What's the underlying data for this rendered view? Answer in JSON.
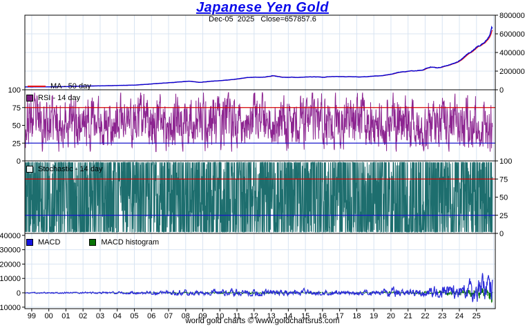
{
  "header": {
    "title": "Japanese Yen Gold",
    "subtitle": "Dec-05  2025   Close=657857.6"
  },
  "footer": {
    "credit": "world gold charts © www.goldchartsrus.com"
  },
  "legends": {
    "ma": "MA - 50 day",
    "rsi": "RSI - 14 day",
    "stoch": "Stochastic - 14 day",
    "macd": "MACD",
    "macd_hist": "MACD histogram"
  },
  "colors": {
    "title": "#0b0bea",
    "price": "#0202d6",
    "ma": "#e81414",
    "rsi": "#8c2490",
    "stochastic": "#1d6e6e",
    "macd": "#2a2ad8",
    "macd_histogram": "#077307",
    "ref_high": "#d40000",
    "ref_low": "#1515cc",
    "grid": "#d8e4f2",
    "label_red": "#dd0000",
    "label_blue": "#1d1dd8"
  },
  "chart_data": {
    "type": "line",
    "title": "Japanese Yen Gold",
    "subtitle_date": "Dec-05 2025",
    "last_close": 657857.6,
    "x_axis": {
      "range": [
        1998.6,
        2026.1
      ],
      "years": [
        1999,
        2000,
        2001,
        2002,
        2003,
        2004,
        2005,
        2006,
        2007,
        2008,
        2009,
        2010,
        2011,
        2012,
        2013,
        2014,
        2015,
        2016,
        2017,
        2018,
        2019,
        2020,
        2021,
        2022,
        2023,
        2024,
        2025
      ],
      "labels": [
        "99",
        "00",
        "01",
        "02",
        "03",
        "04",
        "05",
        "06",
        "07",
        "08",
        "09",
        "10",
        "11",
        "12",
        "13",
        "14",
        "15",
        "16",
        "17",
        "18",
        "19",
        "20",
        "21",
        "22",
        "23",
        "24",
        "25"
      ]
    },
    "panels": [
      {
        "name": "price",
        "ylim": [
          0,
          800000
        ],
        "axis": "right",
        "yticks": [
          {
            "v": 800000,
            "label": "800000",
            "color": "#000000"
          },
          {
            "v": 600000,
            "label": "600000",
            "color": "#000000"
          },
          {
            "v": 400000,
            "label": "400000",
            "color": "#000000"
          },
          {
            "v": 200000,
            "label": "200000",
            "color": "#000000"
          },
          {
            "v": 0,
            "label": "0",
            "color": "#000000"
          }
        ],
        "grid": [
          200000,
          400000,
          600000
        ],
        "refs": [],
        "series": [
          {
            "name": "ma-50-day",
            "color": "#e81414",
            "width": 1.2,
            "gen": "sma",
            "source": 1,
            "window": 8
          },
          {
            "name": "yen-gold-price",
            "color": "#0202d6",
            "width": 1.4,
            "gen": "trend",
            "seed": 11,
            "noise_rho": 0.82,
            "noise_vol": 0.016,
            "noise_clamp": 0.042,
            "pin_last": 657857.6,
            "control_points": [
              [
                1998.62,
                30500
              ],
              [
                2000,
                31500
              ],
              [
                2001,
                34000
              ],
              [
                2002,
                39500
              ],
              [
                2003,
                42000
              ],
              [
                2004,
                46000
              ],
              [
                2005,
                50000
              ],
              [
                2005.9,
                62000
              ],
              [
                2006.4,
                68000
              ],
              [
                2007,
                76000
              ],
              [
                2008.2,
                92000
              ],
              [
                2008.8,
                80000
              ],
              [
                2009.5,
                92000
              ],
              [
                2010.5,
                105000
              ],
              [
                2011.7,
                133000
              ],
              [
                2012.5,
                134000
              ],
              [
                2013.1,
                150000
              ],
              [
                2013.6,
                136000
              ],
              [
                2014.5,
                133000
              ],
              [
                2015.5,
                139000
              ],
              [
                2016.0,
                133000
              ],
              [
                2016.6,
                142000
              ],
              [
                2017.5,
                140000
              ],
              [
                2018.5,
                139000
              ],
              [
                2019.2,
                148000
              ],
              [
                2019.8,
                160000
              ],
              [
                2020.6,
                192000
              ],
              [
                2021.2,
                200000
              ],
              [
                2021.8,
                210000
              ],
              [
                2022.3,
                243000
              ],
              [
                2022.7,
                235000
              ],
              [
                2023.2,
                255000
              ],
              [
                2023.7,
                285000
              ],
              [
                2024.0,
                310000
              ],
              [
                2024.4,
                372000
              ],
              [
                2024.8,
                425000
              ],
              [
                2025.0,
                455000
              ],
              [
                2025.2,
                470000
              ],
              [
                2025.45,
                510000
              ],
              [
                2025.65,
                545000
              ],
              [
                2025.78,
                585000
              ],
              [
                2025.87,
                645000
              ],
              [
                2025.9,
                662000
              ],
              [
                2025.93,
                657857.6
              ]
            ]
          }
        ]
      },
      {
        "name": "rsi",
        "ylim": [
          0,
          100
        ],
        "axis": "left",
        "yticks": [
          {
            "v": 100,
            "label": "100",
            "color": "#000000"
          },
          {
            "v": 75,
            "label": "75",
            "color": "#dd0000"
          },
          {
            "v": 50,
            "label": "50",
            "color": "#000000"
          },
          {
            "v": 25,
            "label": "25",
            "color": "#1d1dd8"
          },
          {
            "v": 0,
            "label": "0",
            "color": "#000000"
          }
        ],
        "grid": [],
        "refs": [
          {
            "v": 75,
            "color": "#d40000"
          },
          {
            "v": 25,
            "color": "#1515cc"
          }
        ],
        "series": [
          {
            "name": "rsi-14-day",
            "color": "#8c2490",
            "width": 1,
            "gen": "meanrev",
            "seed": 23,
            "mean": 55,
            "rho": 0.5,
            "vol": 58,
            "clamp": [
              13,
              96
            ],
            "points_per_year": 60
          }
        ]
      },
      {
        "name": "stochastic",
        "ylim": [
          0,
          100
        ],
        "axis": "right",
        "yticks": [
          {
            "v": 100,
            "label": "100",
            "color": "#000000"
          },
          {
            "v": 75,
            "label": "75",
            "color": "#dd0000"
          },
          {
            "v": 50,
            "label": "50",
            "color": "#000000"
          },
          {
            "v": 25,
            "label": "25",
            "color": "#1d1dd8"
          },
          {
            "v": 0,
            "label": "0",
            "color": "#000000"
          }
        ],
        "grid": [],
        "refs": [
          {
            "v": 75,
            "color": "#d40000"
          },
          {
            "v": 25,
            "color": "#1515cc"
          }
        ],
        "series": [
          {
            "name": "stochastic-14-day",
            "color": "#1d6e6e",
            "width": 1,
            "gen": "meanrev",
            "seed": 37,
            "mean": 50,
            "rho": 0.04,
            "vol": 210,
            "clamp": [
              2,
              98
            ],
            "points_per_year": 80
          }
        ]
      },
      {
        "name": "macd",
        "ylim": [
          -11050,
          41350
        ],
        "axis": "left",
        "yticks": [
          {
            "v": 40000,
            "label": "40000",
            "color": "#000000"
          },
          {
            "v": 30000,
            "label": "30000",
            "color": "#000000"
          },
          {
            "v": 20000,
            "label": "20000",
            "color": "#000000"
          },
          {
            "v": 10000,
            "label": "10000",
            "color": "#000000"
          },
          {
            "v": 0,
            "label": "0",
            "color": "#000000"
          },
          {
            "v": -10000,
            "label": "-10000",
            "color": "#000000"
          }
        ],
        "grid": [
          30000,
          20000,
          10000,
          0,
          -10000
        ],
        "refs": [],
        "series": [
          {
            "name": "macd-histogram",
            "color": "#077307",
            "gen": "env_bars",
            "seed": 53,
            "rho": 0.35,
            "vol": 1.1,
            "clamp": [
              -1,
              1
            ],
            "scale": 0.38,
            "amp_points": [
              [
                1998.62,
                700
              ],
              [
                2002,
                900
              ],
              [
                2005,
                1400
              ],
              [
                2008,
                3200
              ],
              [
                2009,
                2600
              ],
              [
                2011,
                4200
              ],
              [
                2013,
                3600
              ],
              [
                2016,
                2800
              ],
              [
                2019,
                2400
              ],
              [
                2020.3,
                5200
              ],
              [
                2021,
                3800
              ],
              [
                2022,
                5200
              ],
              [
                2023,
                6000
              ],
              [
                2024,
                8500
              ],
              [
                2024.8,
                12000
              ],
              [
                2025.3,
                14000
              ],
              [
                2025.7,
                16000
              ],
              [
                2025.88,
                26000
              ],
              [
                2025.93,
                20000
              ]
            ]
          },
          {
            "name": "macd-line",
            "color": "#2a2ad8",
            "width": 1.2,
            "gen": "env_line",
            "seed": 47,
            "rho": 0.72,
            "vol": 0.85,
            "clamp": [
              -0.55,
              1.05
            ],
            "amp_points": [
              [
                1998.62,
                700
              ],
              [
                2002,
                900
              ],
              [
                2005,
                1400
              ],
              [
                2008,
                3200
              ],
              [
                2009,
                2600
              ],
              [
                2011,
                4200
              ],
              [
                2013,
                3600
              ],
              [
                2016,
                2800
              ],
              [
                2019,
                2400
              ],
              [
                2020.3,
                5200
              ],
              [
                2021,
                3800
              ],
              [
                2022,
                5200
              ],
              [
                2023,
                6000
              ],
              [
                2024,
                8500
              ],
              [
                2024.8,
                12000
              ],
              [
                2025.3,
                14000
              ],
              [
                2025.7,
                16000
              ],
              [
                2025.88,
                26000
              ],
              [
                2025.93,
                20000
              ]
            ]
          }
        ]
      }
    ]
  }
}
